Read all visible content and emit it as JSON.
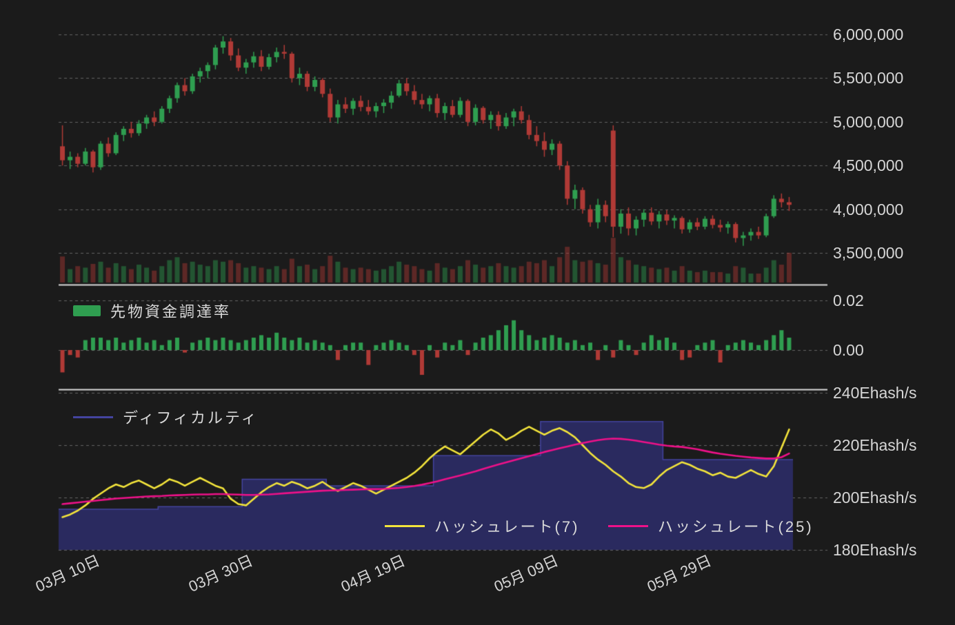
{
  "legends": {
    "funding": "先物資金調達率",
    "difficulty": "ディフィカルティ",
    "hashrate7": "ハッシュレート(7)",
    "hashrate25": "ハッシュレート(25)"
  },
  "axes": {
    "price": [
      {
        "label": "6,000,000",
        "value": 6000000
      },
      {
        "label": "5,500,000",
        "value": 5500000
      },
      {
        "label": "5,000,000",
        "value": 5000000
      },
      {
        "label": "4,500,000",
        "value": 4500000
      },
      {
        "label": "4,000,000",
        "value": 4000000
      },
      {
        "label": "3,500,000",
        "value": 3500000
      }
    ],
    "funding": [
      {
        "label": "0.02",
        "value": 0.02
      },
      {
        "label": "0.00",
        "value": 0
      }
    ],
    "hash": [
      {
        "label": "240Ehash/s",
        "value": 240
      },
      {
        "label": "220Ehash/s",
        "value": 220
      },
      {
        "label": "200Ehash/s",
        "value": 200
      },
      {
        "label": "180Ehash/s",
        "value": 180
      }
    ],
    "x": [
      {
        "label": "03月 10日",
        "index": 2
      },
      {
        "label": "03月 30日",
        "index": 22
      },
      {
        "label": "04月 19日",
        "index": 42
      },
      {
        "label": "05月 09日",
        "index": 62
      },
      {
        "label": "05月 29日",
        "index": 82
      }
    ]
  },
  "colors": {
    "background": "#1b1b1b",
    "text": "#d6d6d6",
    "grid": "rgba(255,255,255,0.32)",
    "separator": "#d9d9d9",
    "candle_up": "#2f9e50",
    "candle_down": "#b03a36",
    "volume_up": "rgba(47,158,80,0.45)",
    "volume_down": "rgba(176,58,54,0.45)",
    "funding_positive": "#2f9e50",
    "funding_negative": "#b03a36",
    "difficulty_fill": "#2a2a5f",
    "difficulty_line": "#4444a0",
    "hashrate7": "#f3e43b",
    "hashrate25": "#ee1189"
  },
  "chart_data": [
    {
      "type": "candlestick",
      "x_tick_labels": [
        "03月 10日",
        "03月 30日",
        "04月 19日",
        "05月 09日",
        "05月 29日"
      ],
      "x_tick_indices": [
        2,
        22,
        42,
        62,
        82
      ],
      "y_ticks": [
        3500000,
        4000000,
        4500000,
        5000000,
        5500000,
        6000000
      ],
      "ylim": [
        3300000,
        6150000
      ],
      "open": [
        4720000,
        4560000,
        4600000,
        4520000,
        4660000,
        4480000,
        4750000,
        4640000,
        4850000,
        4920000,
        4870000,
        4980000,
        5050000,
        5000000,
        5150000,
        5270000,
        5420000,
        5350000,
        5520000,
        5580000,
        5650000,
        5850000,
        5920000,
        5760000,
        5620000,
        5680000,
        5750000,
        5630000,
        5740000,
        5800000,
        5780000,
        5500000,
        5550000,
        5400000,
        5480000,
        5320000,
        5050000,
        5200000,
        5150000,
        5240000,
        5170000,
        5120000,
        5180000,
        5220000,
        5300000,
        5440000,
        5350000,
        5250000,
        5200000,
        5270000,
        5100000,
        5180000,
        5080000,
        5240000,
        5000000,
        5160000,
        5020000,
        5080000,
        4950000,
        5050000,
        5120000,
        5020000,
        4850000,
        4780000,
        4680000,
        4750000,
        4500000,
        4120000,
        4220000,
        4000000,
        3850000,
        4050000,
        4900000,
        3800000,
        3950000,
        3780000,
        3880000,
        3960000,
        3860000,
        3940000,
        3870000,
        3900000,
        3770000,
        3850000,
        3800000,
        3890000,
        3820000,
        3790000,
        3830000,
        3670000,
        3700000,
        3740000,
        3700000,
        3920000,
        4120000,
        4080000
      ],
      "high": [
        4960000,
        4660000,
        4640000,
        4700000,
        4680000,
        4780000,
        4820000,
        4880000,
        4950000,
        5000000,
        5020000,
        5080000,
        5120000,
        5180000,
        5300000,
        5450000,
        5500000,
        5550000,
        5620000,
        5680000,
        5880000,
        5980000,
        5960000,
        5840000,
        5720000,
        5800000,
        5820000,
        5780000,
        5850000,
        5880000,
        5800000,
        5620000,
        5580000,
        5520000,
        5500000,
        5380000,
        5250000,
        5280000,
        5270000,
        5300000,
        5250000,
        5220000,
        5260000,
        5350000,
        5480000,
        5500000,
        5420000,
        5320000,
        5300000,
        5320000,
        5220000,
        5250000,
        5280000,
        5260000,
        5200000,
        5180000,
        5120000,
        5120000,
        5100000,
        5150000,
        5180000,
        5080000,
        4950000,
        4880000,
        4800000,
        4780000,
        4550000,
        4280000,
        4250000,
        4050000,
        4120000,
        4100000,
        4960000,
        4000000,
        4020000,
        3920000,
        4000000,
        4020000,
        3980000,
        3990000,
        3930000,
        3920000,
        3880000,
        3900000,
        3920000,
        3930000,
        3880000,
        3860000,
        3850000,
        3740000,
        3780000,
        3800000,
        3950000,
        4160000,
        4180000,
        4140000
      ],
      "low": [
        4500000,
        4460000,
        4480000,
        4500000,
        4420000,
        4450000,
        4600000,
        4620000,
        4780000,
        4820000,
        4840000,
        4920000,
        4950000,
        4980000,
        5100000,
        5220000,
        5300000,
        5320000,
        5450000,
        5500000,
        5600000,
        5780000,
        5700000,
        5580000,
        5550000,
        5620000,
        5580000,
        5600000,
        5680000,
        5720000,
        5450000,
        5420000,
        5350000,
        5350000,
        5280000,
        5000000,
        4980000,
        5100000,
        5080000,
        5120000,
        5080000,
        5050000,
        5100000,
        5150000,
        5280000,
        5300000,
        5200000,
        5150000,
        5120000,
        5050000,
        5020000,
        5050000,
        5050000,
        4950000,
        4960000,
        4980000,
        4920000,
        4900000,
        4920000,
        4950000,
        4980000,
        4800000,
        4720000,
        4600000,
        4620000,
        4450000,
        4050000,
        4000000,
        3950000,
        3800000,
        3780000,
        3850000,
        3680000,
        3720000,
        3700000,
        3700000,
        3800000,
        3820000,
        3780000,
        3820000,
        3780000,
        3720000,
        3730000,
        3760000,
        3770000,
        3780000,
        3740000,
        3720000,
        3620000,
        3580000,
        3640000,
        3660000,
        3680000,
        3900000,
        4020000,
        3980000
      ],
      "close": [
        4560000,
        4600000,
        4520000,
        4660000,
        4480000,
        4750000,
        4640000,
        4850000,
        4920000,
        4870000,
        4980000,
        5050000,
        5000000,
        5150000,
        5270000,
        5420000,
        5350000,
        5520000,
        5580000,
        5650000,
        5850000,
        5920000,
        5760000,
        5620000,
        5680000,
        5750000,
        5630000,
        5740000,
        5800000,
        5780000,
        5500000,
        5550000,
        5400000,
        5480000,
        5320000,
        5050000,
        5200000,
        5150000,
        5240000,
        5170000,
        5120000,
        5180000,
        5220000,
        5300000,
        5440000,
        5350000,
        5250000,
        5200000,
        5270000,
        5100000,
        5180000,
        5080000,
        5240000,
        5000000,
        5160000,
        5020000,
        5080000,
        4950000,
        5050000,
        5120000,
        5020000,
        4850000,
        4780000,
        4680000,
        4750000,
        4500000,
        4120000,
        4220000,
        4000000,
        3850000,
        4050000,
        3920000,
        3800000,
        3950000,
        3780000,
        3880000,
        3960000,
        3860000,
        3940000,
        3870000,
        3900000,
        3770000,
        3850000,
        3800000,
        3890000,
        3820000,
        3790000,
        3830000,
        3670000,
        3700000,
        3740000,
        3700000,
        3920000,
        4120000,
        4080000,
        4050000
      ],
      "volume_relative": [
        35,
        18,
        22,
        20,
        25,
        28,
        20,
        26,
        22,
        18,
        24,
        20,
        16,
        22,
        30,
        34,
        26,
        28,
        24,
        22,
        30,
        28,
        30,
        26,
        20,
        22,
        20,
        18,
        22,
        18,
        32,
        22,
        24,
        18,
        22,
        36,
        28,
        20,
        18,
        20,
        18,
        16,
        18,
        22,
        28,
        24,
        22,
        18,
        16,
        26,
        20,
        18,
        22,
        30,
        24,
        20,
        22,
        26,
        22,
        20,
        22,
        28,
        26,
        30,
        22,
        34,
        48,
        30,
        28,
        30,
        26,
        24,
        60,
        34,
        30,
        24,
        22,
        20,
        18,
        20,
        16,
        22,
        16,
        14,
        16,
        14,
        14,
        12,
        22,
        20,
        12,
        12,
        20,
        30,
        24,
        40
      ]
    },
    {
      "type": "bar",
      "name": "先物資金調達率",
      "y_ticks": [
        0,
        0.02
      ],
      "values": [
        -0.009,
        -0.002,
        -0.003,
        0.004,
        0.005,
        0.005,
        0.004,
        0.005,
        0.003,
        0.004,
        0.005,
        0.003,
        0.004,
        0.002,
        0.004,
        0.005,
        -0.001,
        0.003,
        0.004,
        0.005,
        0.004,
        0.005,
        0.004,
        0.003,
        0.004,
        0.005,
        0.006,
        0.005,
        0.007,
        0.005,
        0.004,
        0.005,
        0.003,
        0.004,
        0.003,
        0.002,
        -0.004,
        0.002,
        0.003,
        0.003,
        -0.006,
        0.002,
        0.003,
        0.004,
        0.003,
        0.002,
        -0.002,
        -0.01,
        0.002,
        -0.003,
        0.003,
        0.002,
        0.004,
        -0.002,
        0.003,
        0.005,
        0.006,
        0.008,
        0.01,
        0.012,
        0.008,
        0.006,
        0.004,
        0.005,
        0.006,
        0.005,
        0.003,
        0.004,
        0.002,
        0.003,
        -0.004,
        0.002,
        -0.003,
        0.004,
        0.002,
        -0.002,
        0.003,
        0.006,
        0.004,
        0.005,
        0.003,
        -0.004,
        -0.003,
        0.002,
        0.003,
        0.004,
        -0.005,
        0.002,
        0.003,
        0.004,
        0.003,
        0.002,
        0.004,
        0.006,
        0.008,
        0.005
      ]
    },
    {
      "type": "line",
      "ylabel": "Ehash/s",
      "y_ticks": [
        180,
        200,
        220,
        240
      ],
      "series": [
        {
          "name": "ディフィカルティ",
          "style": "step-area",
          "points": [
            [
              0,
              195.5
            ],
            [
              13,
              196.5
            ],
            [
              24,
              207
            ],
            [
              35,
              204.5
            ],
            [
              49,
              216
            ],
            [
              63,
              229
            ],
            [
              79,
              214.5
            ]
          ]
        },
        {
          "name": "ハッシュレート(7)",
          "style": "line",
          "values": [
            192.5,
            193.5,
            195,
            197,
            199.5,
            201.5,
            203.5,
            205,
            204,
            205.5,
            206.5,
            205,
            203.5,
            205,
            207,
            206,
            204.5,
            206,
            207.5,
            206,
            204.5,
            203.5,
            199.5,
            197.5,
            197,
            199.5,
            202,
            204,
            205.5,
            204.5,
            206,
            205,
            203.5,
            204.5,
            206,
            204,
            202.5,
            204,
            205.5,
            204.5,
            203,
            201.5,
            203,
            204.5,
            206,
            207.5,
            209.5,
            212,
            215,
            217.5,
            219.5,
            218,
            216.5,
            219,
            221.5,
            224,
            226,
            224.5,
            222,
            223.5,
            225.5,
            227,
            225.5,
            224,
            225.5,
            226.5,
            225,
            223,
            220,
            217,
            214.5,
            212.5,
            210,
            208,
            205.5,
            204,
            203.6,
            205,
            208,
            210.5,
            212,
            213.5,
            212.5,
            211,
            210,
            208.5,
            209.5,
            208,
            207.5,
            209,
            210.5,
            209,
            208,
            212,
            219,
            226
          ]
        },
        {
          "name": "ハッシュレート(25)",
          "style": "line",
          "values": [
            197.5,
            197.8,
            198.1,
            198.4,
            198.7,
            199,
            199.3,
            199.6,
            199.8,
            200,
            200.2,
            200.4,
            200.5,
            200.6,
            200.8,
            200.9,
            201,
            201.1,
            201.2,
            201.2,
            201.3,
            201.3,
            201.2,
            201.1,
            201,
            201,
            201.1,
            201.2,
            201.4,
            201.6,
            201.8,
            202,
            202.2,
            202.4,
            202.6,
            202.7,
            202.8,
            202.9,
            203,
            203.1,
            203.2,
            203.2,
            203.3,
            203.5,
            203.7,
            204,
            204.4,
            204.9,
            205.5,
            206.2,
            207,
            207.7,
            208.4,
            209.2,
            210,
            210.9,
            211.8,
            212.6,
            213.4,
            214.2,
            215,
            215.8,
            216.6,
            217.4,
            218.1,
            218.8,
            219.5,
            220.2,
            220.8,
            221.4,
            221.9,
            222.3,
            222.5,
            222.4,
            222.1,
            221.7,
            221.2,
            220.7,
            220.2,
            219.8,
            219.5,
            219.3,
            218.9,
            218.4,
            217.8,
            217.2,
            216.7,
            216.3,
            215.9,
            215.6,
            215.3,
            215.1,
            214.9,
            214.9,
            215.4,
            216.8
          ]
        }
      ]
    }
  ]
}
